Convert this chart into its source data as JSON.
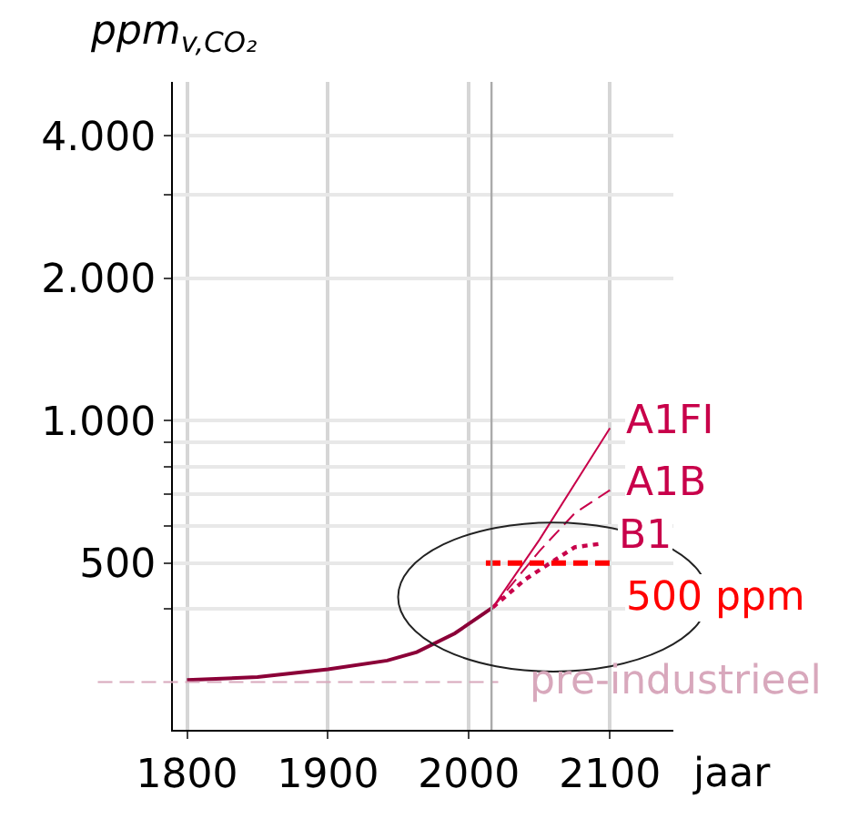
{
  "chart_data": {
    "type": "line",
    "ylabel": "ppm$_{v,CO₂}$",
    "xlabel": "jaar",
    "log": "y",
    "xlim": [
      1790,
      2145
    ],
    "xticks": [
      1800,
      1900,
      2000,
      2100
    ],
    "ylim": [
      222,
      5200
    ],
    "yticks": [
      {
        "value": 400,
        "label": null
      },
      {
        "value": 500,
        "label": "500"
      },
      {
        "value": 600,
        "label": null
      },
      {
        "value": 700,
        "label": null
      },
      {
        "value": 800,
        "label": null
      },
      {
        "value": 900,
        "label": null
      },
      {
        "value": 1000,
        "label": "1.000"
      },
      {
        "value": 2000,
        "label": "2.000"
      },
      {
        "value": 3000,
        "label": null
      },
      {
        "value": 4000,
        "label": "4.000"
      }
    ],
    "grid": true,
    "legend": false,
    "series": [
      {
        "color": "#8b0038",
        "x": [
          1800,
          1850,
          1900,
          1942,
          1963,
          1990,
          2017
        ],
        "values": [
          283,
          287,
          298,
          311,
          324,
          355,
          403
        ],
        "line_style": "solid"
      },
      {
        "name": "A1FI",
        "color": "#c8004a",
        "x": [
          2017,
          2050,
          2100
        ],
        "values": [
          403,
          560,
          964
        ],
        "line_style": "solid"
      },
      {
        "name": "A1B",
        "color": "#c8004a",
        "x": [
          2017,
          2050,
          2075,
          2100
        ],
        "values": [
          403,
          530,
          637,
          713
        ],
        "line_style": "dashed"
      },
      {
        "name": "B1",
        "color": "#c8004a",
        "x": [
          2017,
          2040,
          2075,
          2095
        ],
        "values": [
          403,
          462,
          540,
          550
        ],
        "line_style": "dotted"
      },
      {
        "name": "500 ppm",
        "color": "#ff0000",
        "x": [
          2012,
          2100
        ],
        "values": [
          500,
          500
        ],
        "line_style": "dashed"
      }
    ],
    "ref_lines": [
      {
        "axis": "y",
        "value": 280,
        "label": "pre-industrieel",
        "color": "#d8a8bc",
        "line_style": "dashed"
      },
      {
        "axis": "x",
        "value": 2016,
        "label": null,
        "color": "#aaaaaa",
        "line_style": "solid"
      }
    ]
  }
}
